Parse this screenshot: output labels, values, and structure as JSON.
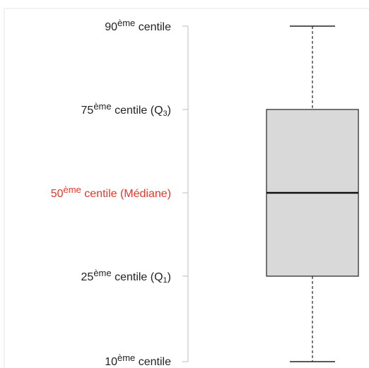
{
  "labels": {
    "p90": {
      "num": "90",
      "sup": "ème",
      "text": " centile"
    },
    "p75": {
      "num": "75",
      "sup": "ème",
      "text": " centile (Q",
      "sub": "3",
      "close": ")"
    },
    "p50": {
      "num": "50",
      "sup": "ème",
      "text": " centile (Médiane)"
    },
    "p25": {
      "num": "25",
      "sup": "ème",
      "text": " centile (Q",
      "sub": "1",
      "close": ")"
    },
    "p10": {
      "num": "10",
      "sup": "ème",
      "text": " centile"
    }
  },
  "colors": {
    "label": "#222222",
    "median_label": "#e8372c",
    "box_fill": "#d9d9d9",
    "box_stroke": "#222222"
  }
}
